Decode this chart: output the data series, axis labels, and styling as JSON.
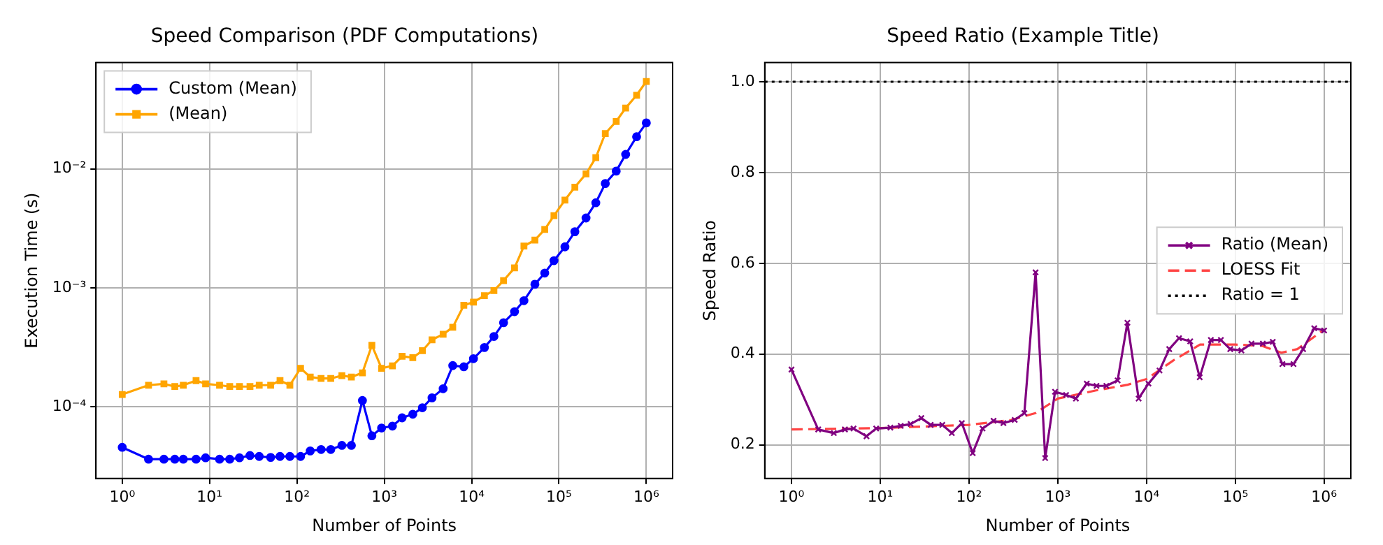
{
  "chart_data": [
    {
      "type": "line",
      "title": "Speed Comparison (PDF Computations)",
      "xlabel": "Number of Points",
      "ylabel": "Execution Time (s)",
      "log": "xy",
      "grid": true,
      "legend": "top left",
      "x": [
        1,
        2,
        3,
        4,
        5,
        7,
        9,
        13,
        17,
        22,
        29,
        37,
        50,
        64,
        83,
        110,
        142,
        189,
        244,
        327,
        420,
        562,
        721,
        931,
        1240,
        1600,
        2120,
        2730,
        3520,
        4720,
        6080,
        8140,
        10500,
        14000,
        18000,
        23200,
        31000,
        39700,
        53000,
        68700,
        87600,
        117000,
        152000,
        204000,
        264000,
        339000,
        452000,
        580000,
        774000,
        1000000
      ],
      "series": [
        {
          "name": "Custom (Mean)",
          "color": "#0000ff",
          "marker": "circle",
          "values": [
            4.57e-05,
            3.63e-05,
            3.63e-05,
            3.63e-05,
            3.63e-05,
            3.63e-05,
            3.73e-05,
            3.63e-05,
            3.63e-05,
            3.73e-05,
            3.9e-05,
            3.83e-05,
            3.76e-05,
            3.83e-05,
            3.83e-05,
            3.83e-05,
            4.26e-05,
            4.38e-05,
            4.38e-05,
            4.74e-05,
            4.74e-05,
            0.000113,
            5.71e-05,
            6.64e-05,
            6.89e-05,
            8.08e-05,
            8.67e-05,
            9.82e-05,
            0.000119,
            0.000142,
            0.000222,
            0.000217,
            0.000254,
            0.000315,
            0.00039,
            0.000509,
            0.00063,
            0.00078,
            0.00107,
            0.00133,
            0.00169,
            0.00221,
            0.00296,
            0.00386,
            0.00518,
            0.00752,
            0.00956,
            0.0132,
            0.0186,
            0.0243
          ]
        },
        {
          "name": "(Mean)",
          "color": "#ffa500",
          "marker": "square",
          "values": [
            0.000127,
            0.000152,
            0.000156,
            0.000148,
            0.000152,
            0.000166,
            0.000156,
            0.000152,
            0.000148,
            0.000148,
            0.000148,
            0.000152,
            0.000152,
            0.000166,
            0.000152,
            0.000211,
            0.000178,
            0.000173,
            0.000173,
            0.000183,
            0.000178,
            0.000193,
            0.000329,
            0.000211,
            0.000221,
            0.000266,
            0.000259,
            0.000296,
            0.000366,
            0.000407,
            0.000466,
            0.000713,
            0.000759,
            0.000859,
            0.000948,
            0.00115,
            0.00147,
            0.00224,
            0.00252,
            0.00309,
            0.00404,
            0.00546,
            0.00701,
            0.00907,
            0.0124,
            0.0198,
            0.025,
            0.0324,
            0.0415,
            0.0542
          ]
        }
      ],
      "xlim": [
        0.5,
        2000000
      ],
      "xticks": [
        {
          "value": 1,
          "label": "10⁰"
        },
        {
          "value": 10,
          "label": "10¹"
        },
        {
          "value": 100,
          "label": "10²"
        },
        {
          "value": 1000,
          "label": "10³"
        },
        {
          "value": 10000,
          "label": "10⁴"
        },
        {
          "value": 100000,
          "label": "10⁵"
        },
        {
          "value": 1000000,
          "label": "10⁶"
        }
      ],
      "ylim": [
        2.5e-05,
        0.078
      ],
      "yticks": [
        {
          "value": 0.0001,
          "label": "10⁻⁴"
        },
        {
          "value": 0.001,
          "label": "10⁻³"
        },
        {
          "value": 0.01,
          "label": "10⁻²"
        }
      ]
    },
    {
      "type": "line",
      "title": "Speed Ratio (Example Title)",
      "xlabel": "Number of Points",
      "ylabel": "Speed Ratio",
      "log": "x",
      "grid": true,
      "legend": "center right",
      "x": [
        1,
        2,
        3,
        4,
        5,
        7,
        9,
        13,
        17,
        22,
        29,
        37,
        50,
        64,
        83,
        110,
        142,
        189,
        244,
        327,
        420,
        562,
        721,
        931,
        1240,
        1600,
        2120,
        2730,
        3520,
        4720,
        6080,
        8140,
        10500,
        14000,
        18000,
        23200,
        31000,
        39700,
        53000,
        68700,
        87600,
        117000,
        152000,
        204000,
        264000,
        339000,
        452000,
        580000,
        774000,
        1000000
      ],
      "series": [
        {
          "name": "Ratio (Mean)",
          "color": "#800080",
          "marker": "cross",
          "values": [
            0.366,
            0.234,
            0.226,
            0.234,
            0.236,
            0.219,
            0.236,
            0.238,
            0.242,
            0.246,
            0.259,
            0.244,
            0.244,
            0.226,
            0.248,
            0.182,
            0.236,
            0.253,
            0.248,
            0.255,
            0.27,
            0.58,
            0.171,
            0.317,
            0.31,
            0.302,
            0.335,
            0.33,
            0.33,
            0.342,
            0.469,
            0.302,
            0.335,
            0.364,
            0.411,
            0.435,
            0.428,
            0.349,
            0.431,
            0.431,
            0.411,
            0.408,
            0.423,
            0.423,
            0.427,
            0.378,
            0.378,
            0.411,
            0.457,
            0.452
          ]
        },
        {
          "name": "LOESS Fit",
          "type": "line",
          "color": "#ff4444",
          "marker": "none",
          "line_style": "dashed",
          "x": [
            1,
            10,
            100,
            300,
            560,
            1000,
            2700,
            6000,
            10000,
            20000,
            40000,
            100000,
            200000,
            330000,
            500000,
            1000000
          ],
          "values": [
            0.234,
            0.237,
            0.244,
            0.255,
            0.27,
            0.302,
            0.32,
            0.332,
            0.345,
            0.386,
            0.421,
            0.421,
            0.418,
            0.403,
            0.411,
            0.454
          ]
        }
      ],
      "ref_lines": [
        {
          "axis": "y",
          "value": 1,
          "label": "Ratio = 1",
          "color": "#000000",
          "line_style": "dotted"
        }
      ],
      "xlim": [
        0.5,
        2000000
      ],
      "xticks": [
        {
          "value": 1,
          "label": "10⁰"
        },
        {
          "value": 10,
          "label": "10¹"
        },
        {
          "value": 100,
          "label": "10²"
        },
        {
          "value": 1000,
          "label": "10³"
        },
        {
          "value": 10000,
          "label": "10⁴"
        },
        {
          "value": 100000,
          "label": "10⁵"
        },
        {
          "value": 1000000,
          "label": "10⁶"
        }
      ],
      "ylim": [
        0.126,
        1.042
      ],
      "yticks": [
        0.2,
        0.4,
        0.6,
        0.8,
        {
          "value": 1,
          "label": "1.0"
        }
      ]
    }
  ]
}
